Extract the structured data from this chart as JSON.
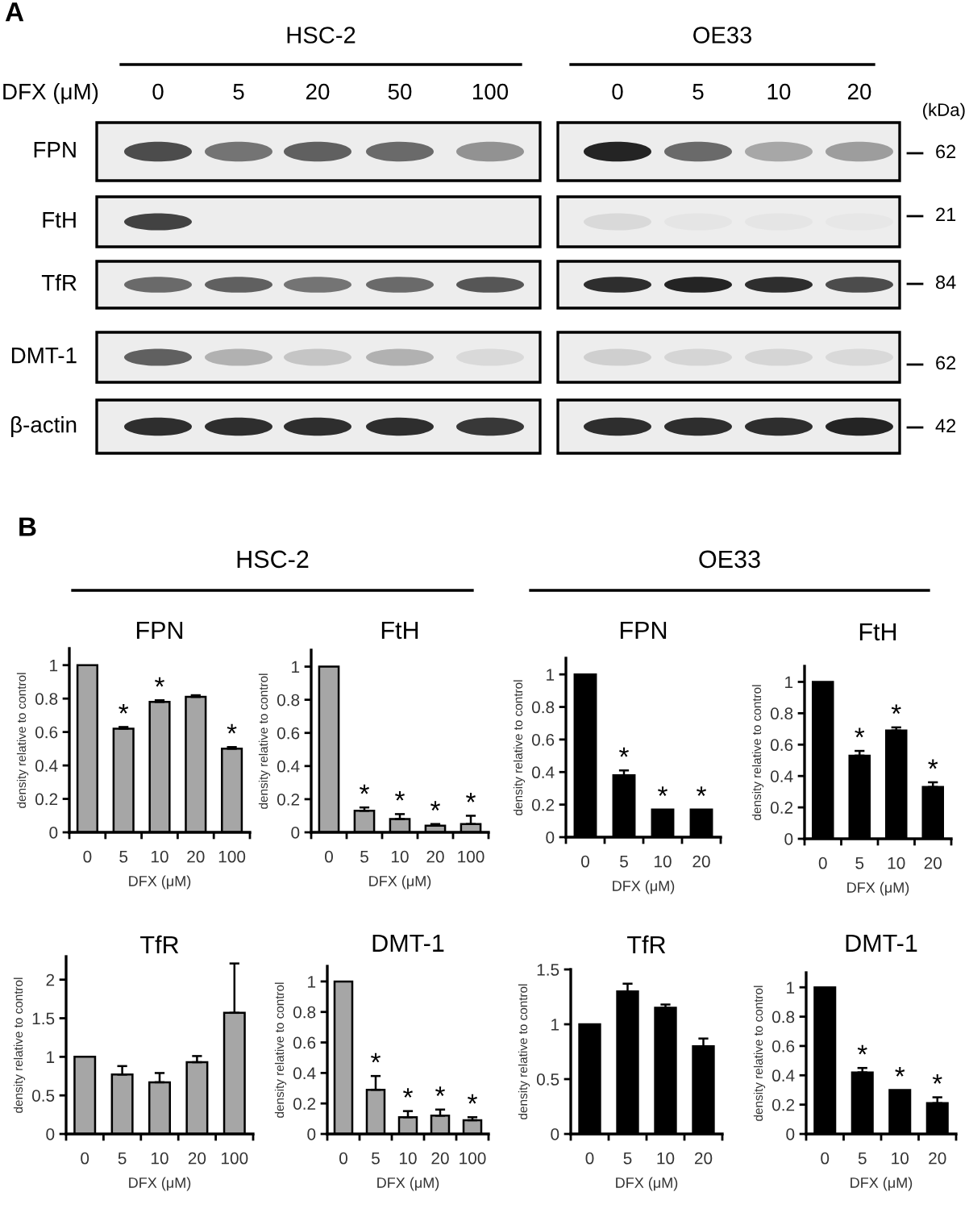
{
  "chart_data": [
    {
      "type": "other",
      "title": "A",
      "annotations": [
        "HSC-2",
        "OE33"
      ],
      "xlabel": "DFX (μM)",
      "categories": [
        "0",
        "5",
        "20",
        "50",
        "100",
        "0",
        "5",
        "10",
        "20"
      ],
      "y_categories": [
        "FPN",
        "FtH",
        "TfR",
        "DMT-1",
        "β-actin"
      ],
      "y2label": "(kDa)",
      "y2_categories": [
        "62",
        "21",
        "84",
        "62",
        "42"
      ]
    },
    {
      "type": "other",
      "title": "B",
      "annotations": [
        "HSC-2",
        "OE33"
      ]
    },
    {
      "type": "bar",
      "title": "FPN",
      "xlabel": "DFX (μM)",
      "ylabel": "density relative to control",
      "categories": [
        "0",
        "5",
        "10",
        "20",
        "100"
      ],
      "values": [
        1,
        0.62,
        0.78,
        0.81,
        0.5
      ],
      "errors": [
        null,
        [
          0.62,
          0.63
        ],
        [
          0.78,
          0.79
        ],
        [
          0.81,
          0.82
        ],
        [
          0.5,
          0.51
        ]
      ],
      "value_labels": [
        null,
        "*",
        "*",
        null,
        "*"
      ],
      "color": "#a6a6a6",
      "ylim": [
        0,
        1.1
      ],
      "yticks": [
        0,
        0.2,
        0.4,
        0.6,
        0.8,
        1
      ]
    },
    {
      "type": "bar",
      "title": "FtH",
      "xlabel": "DFX (μM)",
      "ylabel": "density relative to control",
      "categories": [
        "0",
        "5",
        "10",
        "20",
        "100"
      ],
      "values": [
        1,
        0.13,
        0.08,
        0.04,
        0.05
      ],
      "errors": [
        null,
        [
          0.13,
          0.15
        ],
        [
          0.08,
          0.11
        ],
        [
          0.04,
          0.05
        ],
        [
          0.05,
          0.1
        ]
      ],
      "value_labels": [
        null,
        "*",
        "*",
        "*",
        "*"
      ],
      "color": "#a6a6a6",
      "ylim": [
        0,
        1.1
      ],
      "yticks": [
        0,
        0.2,
        0.4,
        0.6,
        0.8,
        1
      ]
    },
    {
      "type": "bar",
      "title": "FPN",
      "xlabel": "DFX (μM)",
      "ylabel": "density relative to control",
      "categories": [
        "0",
        "5",
        "10",
        "20"
      ],
      "values": [
        1,
        0.38,
        0.17,
        0.17
      ],
      "errors": [
        null,
        [
          0.38,
          0.41
        ],
        null,
        null
      ],
      "value_labels": [
        null,
        "*",
        "*",
        "*"
      ],
      "color": "#000000",
      "ylim": [
        0,
        1.1
      ],
      "yticks": [
        0,
        0.2,
        0.4,
        0.6,
        0.8,
        1
      ]
    },
    {
      "type": "bar",
      "title": "FtH",
      "xlabel": "DFX (μM)",
      "ylabel": "density relative to control",
      "categories": [
        "0",
        "5",
        "10",
        "20"
      ],
      "values": [
        1,
        0.53,
        0.69,
        0.33
      ],
      "errors": [
        null,
        [
          0.53,
          0.56
        ],
        [
          0.69,
          0.71
        ],
        [
          0.33,
          0.36
        ]
      ],
      "value_labels": [
        null,
        "*",
        "*",
        "*"
      ],
      "color": "#000000",
      "ylim": [
        0,
        1.1
      ],
      "yticks": [
        0,
        0.2,
        0.4,
        0.6,
        0.8,
        1
      ]
    },
    {
      "type": "bar",
      "title": "TfR",
      "xlabel": "DFX (μM)",
      "ylabel": "density relative to control",
      "categories": [
        "0",
        "5",
        "10",
        "20",
        "100"
      ],
      "values": [
        1,
        0.77,
        0.67,
        0.93,
        1.57
      ],
      "errors": [
        null,
        [
          0.77,
          0.88
        ],
        [
          0.67,
          0.79
        ],
        [
          0.93,
          1.01
        ],
        [
          1.57,
          2.21
        ]
      ],
      "color": "#a6a6a6",
      "ylim": [
        0,
        2.3
      ],
      "yticks": [
        0,
        0.5,
        1,
        1.5,
        2
      ]
    },
    {
      "type": "bar",
      "title": "DMT-1",
      "xlabel": "DFX (μM)",
      "ylabel": "density relative to control",
      "categories": [
        "0",
        "5",
        "10",
        "20",
        "100"
      ],
      "values": [
        1,
        0.29,
        0.11,
        0.12,
        0.09
      ],
      "errors": [
        null,
        [
          0.29,
          0.38
        ],
        [
          0.11,
          0.15
        ],
        [
          0.12,
          0.16
        ],
        [
          0.09,
          0.11
        ]
      ],
      "value_labels": [
        null,
        "*",
        "*",
        "*",
        "*"
      ],
      "color": "#a6a6a6",
      "ylim": [
        0,
        1.1
      ],
      "yticks": [
        0,
        0.2,
        0.4,
        0.6,
        0.8,
        1
      ]
    },
    {
      "type": "bar",
      "title": "TfR",
      "xlabel": "DFX (μM)",
      "ylabel": "density relative to control",
      "categories": [
        "0",
        "5",
        "10",
        "20"
      ],
      "values": [
        1,
        1.3,
        1.15,
        0.8
      ],
      "errors": [
        null,
        [
          1.3,
          1.37
        ],
        [
          1.15,
          1.18
        ],
        [
          0.8,
          0.87
        ]
      ],
      "color": "#000000",
      "ylim": [
        0,
        1.5
      ],
      "yticks": [
        0,
        0.5,
        1,
        1.5
      ]
    },
    {
      "type": "bar",
      "title": "DMT-1",
      "xlabel": "DFX (μM)",
      "ylabel": "density relative to control",
      "categories": [
        "0",
        "5",
        "10",
        "20"
      ],
      "values": [
        1,
        0.42,
        0.3,
        0.21
      ],
      "errors": [
        null,
        [
          0.42,
          0.45
        ],
        null,
        [
          0.21,
          0.25
        ]
      ],
      "value_labels": [
        null,
        "*",
        "*",
        "*"
      ],
      "color": "#000000",
      "ylim": [
        0,
        1.1
      ],
      "yticks": [
        0,
        0.2,
        0.4,
        0.6,
        0.8,
        1
      ]
    }
  ]
}
